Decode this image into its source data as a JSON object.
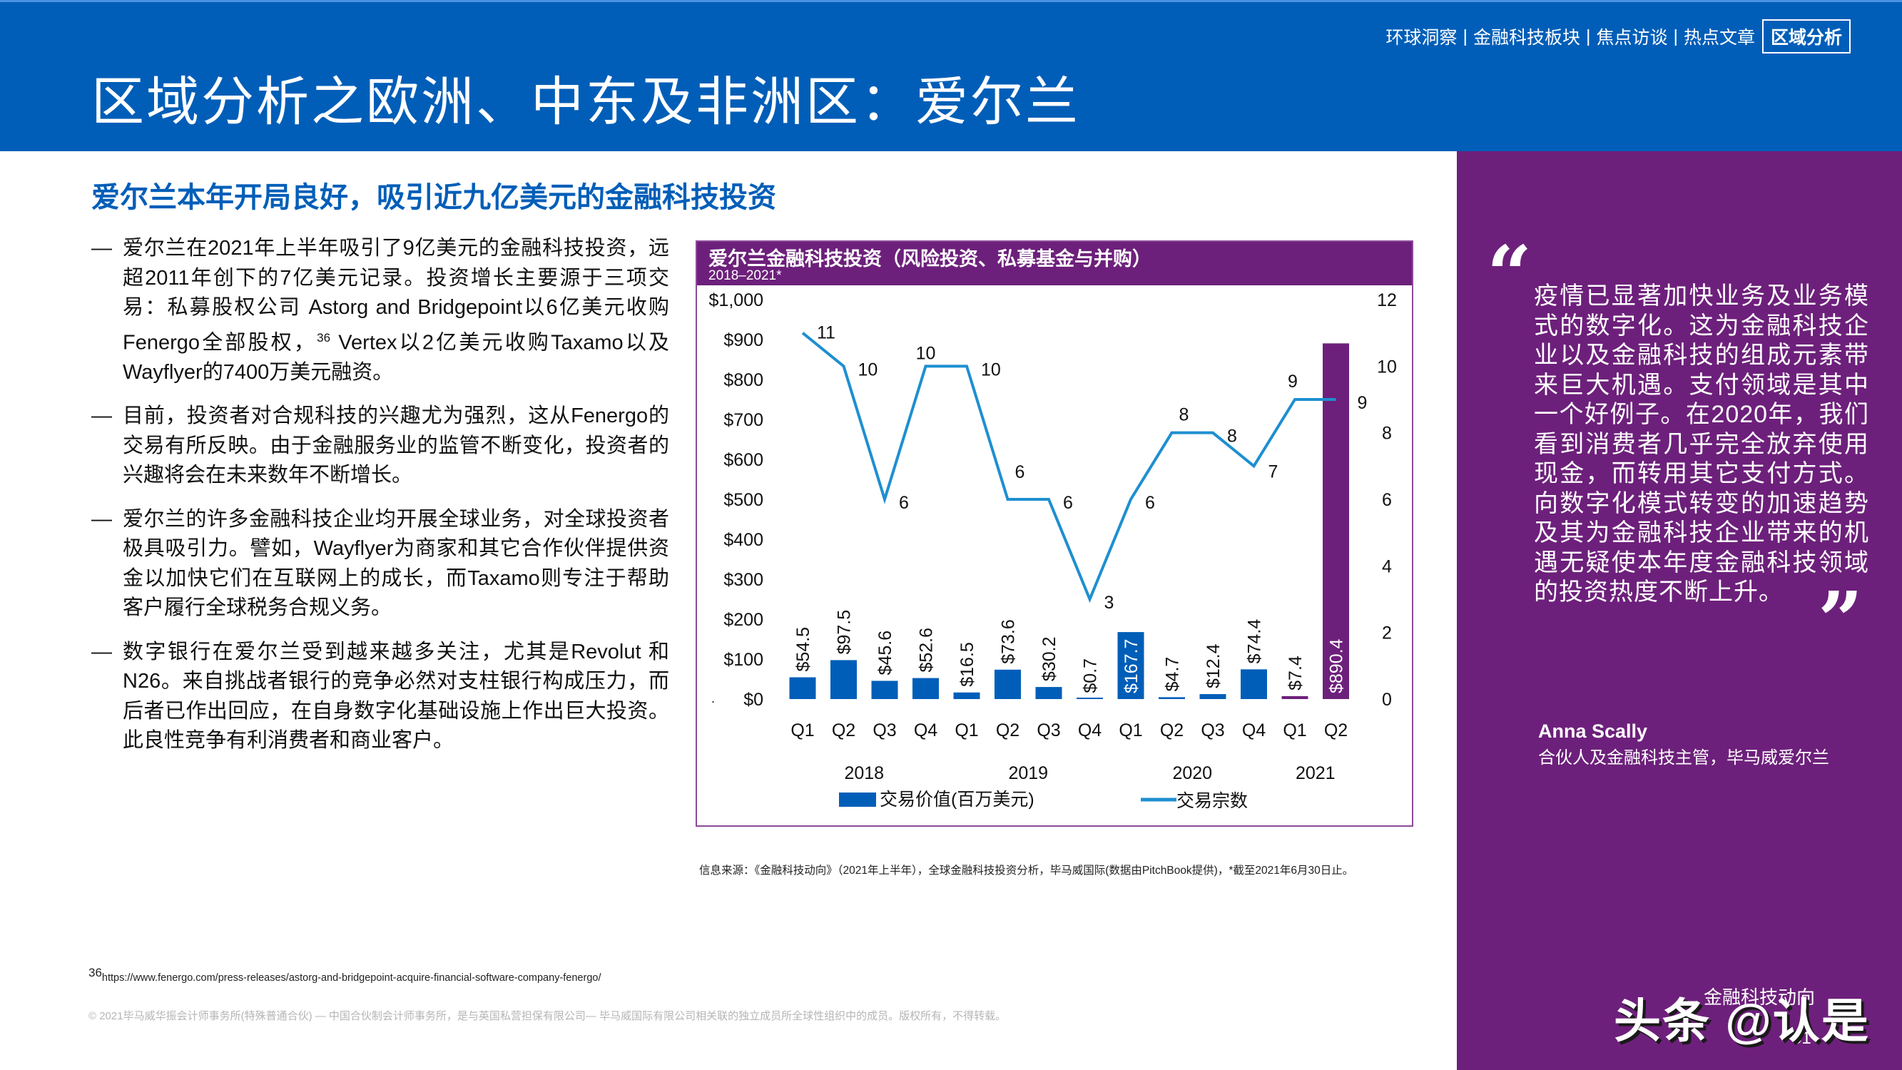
{
  "header": {
    "nav": [
      {
        "label": "环球洞察",
        "active": false
      },
      {
        "label": "金融科技板块",
        "active": false
      },
      {
        "label": "焦点访谈",
        "active": false
      },
      {
        "label": "热点文章",
        "active": false
      },
      {
        "label": "区域分析",
        "active": true
      }
    ],
    "nav_separator": "|",
    "title": "区域分析之欧洲、中东及非洲区：爱尔兰"
  },
  "main": {
    "subtitle": "爱尔兰本年开局良好，吸引近九亿美元的金融科技投资",
    "bullet_dash": "—",
    "bullets": [
      {
        "text_a": "爱尔兰在2021年上半年吸引了9亿美元的金融科技投资，远超2011年创下的7亿美元记录。投资增长主要源于三项交易：私募股权公司 Astorg and Bridgepoint以6亿美元收购Fenergo全部股权，",
        "sup": "36",
        "text_b": " Vertex以2亿美元收购Taxamo以及Wayflyer的7400万美元融资。"
      },
      {
        "text_a": "目前，投资者对合规科技的兴趣尤为强烈，这从Fenergo的交易有所反映。由于金融服务业的监管不断变化，投资者的兴趣将会在未来数年不断增长。",
        "sup": "",
        "text_b": ""
      },
      {
        "text_a": "爱尔兰的许多金融科技企业均开展全球业务，对全球投资者极具吸引力。譬如，Wayflyer为商家和其它合作伙伴提供资金以加快它们在互联网上的成长，而Taxamo则专注于帮助客户履行全球税务合规义务。",
        "sup": "",
        "text_b": ""
      },
      {
        "text_a": "数字银行在爱尔兰受到越来越多关注，尤其是Revolut 和N26。来自挑战者银行的竞争必然对支柱银行构成压力，而后者已作出回应，在自身数字化基础设施上作出巨大投资。此良性竞争有利消费者和商业客户。",
        "sup": "",
        "text_b": ""
      }
    ],
    "source": "信息来源：《金融科技动向》（2021年上半年），全球金融科技投资分析，毕马威国际(数据由PitchBook提供)，*截至2021年6月30日止。",
    "footnote_sup": "36",
    "footnote_url": "https://www.fenergo.com/press-releases/astorg-and-bridgepoint-acquire-financial-software-company-fenergo/",
    "copyright": "© 2021毕马威华振会计师事务所(特殊普通合伙) — 中国合伙制会计师事务所，是与英国私营担保有限公司— 毕马威国际有限公司相关联的独立成员所全球性组织中的成员。版权所有，不得转载。"
  },
  "chart": {
    "title": "爱尔兰金融科技投资（风险投资、私募基金与并购）",
    "subtitle": "2018–2021*",
    "colors": {
      "bar": "#005eb8",
      "bar_highlight": "#6d207b",
      "line": "#1e8fd0",
      "border": "#8d4a98"
    }
  },
  "chart_data": {
    "type": "bar+line",
    "title": "爱尔兰金融科技投资（风险投资、私募基金与并购）",
    "subtitle": "2018–2021*",
    "categories": [
      "Q1",
      "Q2",
      "Q3",
      "Q4",
      "Q1",
      "Q2",
      "Q3",
      "Q4",
      "Q1",
      "Q2",
      "Q3",
      "Q4",
      "Q1",
      "Q2"
    ],
    "years": [
      {
        "label": "2018",
        "span": [
          0,
          3
        ]
      },
      {
        "label": "2019",
        "span": [
          4,
          7
        ]
      },
      {
        "label": "2020",
        "span": [
          8,
          11
        ]
      },
      {
        "label": "2021",
        "span": [
          12,
          13
        ]
      }
    ],
    "series": [
      {
        "name": "交易价值(百万美元)",
        "type": "bar",
        "axis": "left",
        "values": [
          54.5,
          97.5,
          45.6,
          52.6,
          16.5,
          73.6,
          30.2,
          0.7,
          167.7,
          4.7,
          12.4,
          74.4,
          7.4,
          890.4
        ],
        "labels": [
          "$54.5",
          "$97.5",
          "$45.6",
          "$52.6",
          "$16.5",
          "$73.6",
          "$30.2",
          "$0.7",
          "$167.7",
          "$4.7",
          "$12.4",
          "$74.4",
          "$7.4",
          "$890.4"
        ]
      },
      {
        "name": "交易宗数",
        "type": "line",
        "axis": "right",
        "values": [
          11,
          10,
          6,
          10,
          10,
          6,
          6,
          3,
          6,
          8,
          8,
          7,
          9,
          9
        ]
      }
    ],
    "left_axis": {
      "ticks": [
        "$0",
        "$100",
        "$200",
        "$300",
        "$400",
        "$500",
        "$600",
        "$700",
        "$800",
        "$900",
        "$1,000"
      ],
      "ylim": [
        0,
        1000
      ]
    },
    "right_axis": {
      "ticks": [
        "0",
        "2",
        "4",
        "6",
        "8",
        "10",
        "12"
      ],
      "ylim": [
        0,
        12
      ]
    },
    "legend": [
      {
        "label": "交易价值(百万美元)",
        "kind": "bar"
      },
      {
        "label": "交易宗数",
        "kind": "line"
      }
    ],
    "legend_position": "bottom",
    "grid": false
  },
  "quote": {
    "open_mark": "“",
    "text": "疫情已显著加快业务及业务模式的数字化。这为金融科技企业以及金融科技的组成元素带来巨大机遇。支付领域是其中一个好例子。在2020年，我们看到消费者几乎完全放弃使用现金，而转用其它支付方式。向数字化模式转变的加速趋势及其为金融科技企业带来的机遇无疑使本年度金融科技领域的投资热度不断上升。",
    "close_mark": "”",
    "author_name": "Anna Scally",
    "author_role": "合伙人及金融科技主管，毕马威爱尔兰"
  },
  "footer": {
    "brand": "金融科技动向",
    "page_number": "51",
    "watermark": "头条 @认是"
  }
}
